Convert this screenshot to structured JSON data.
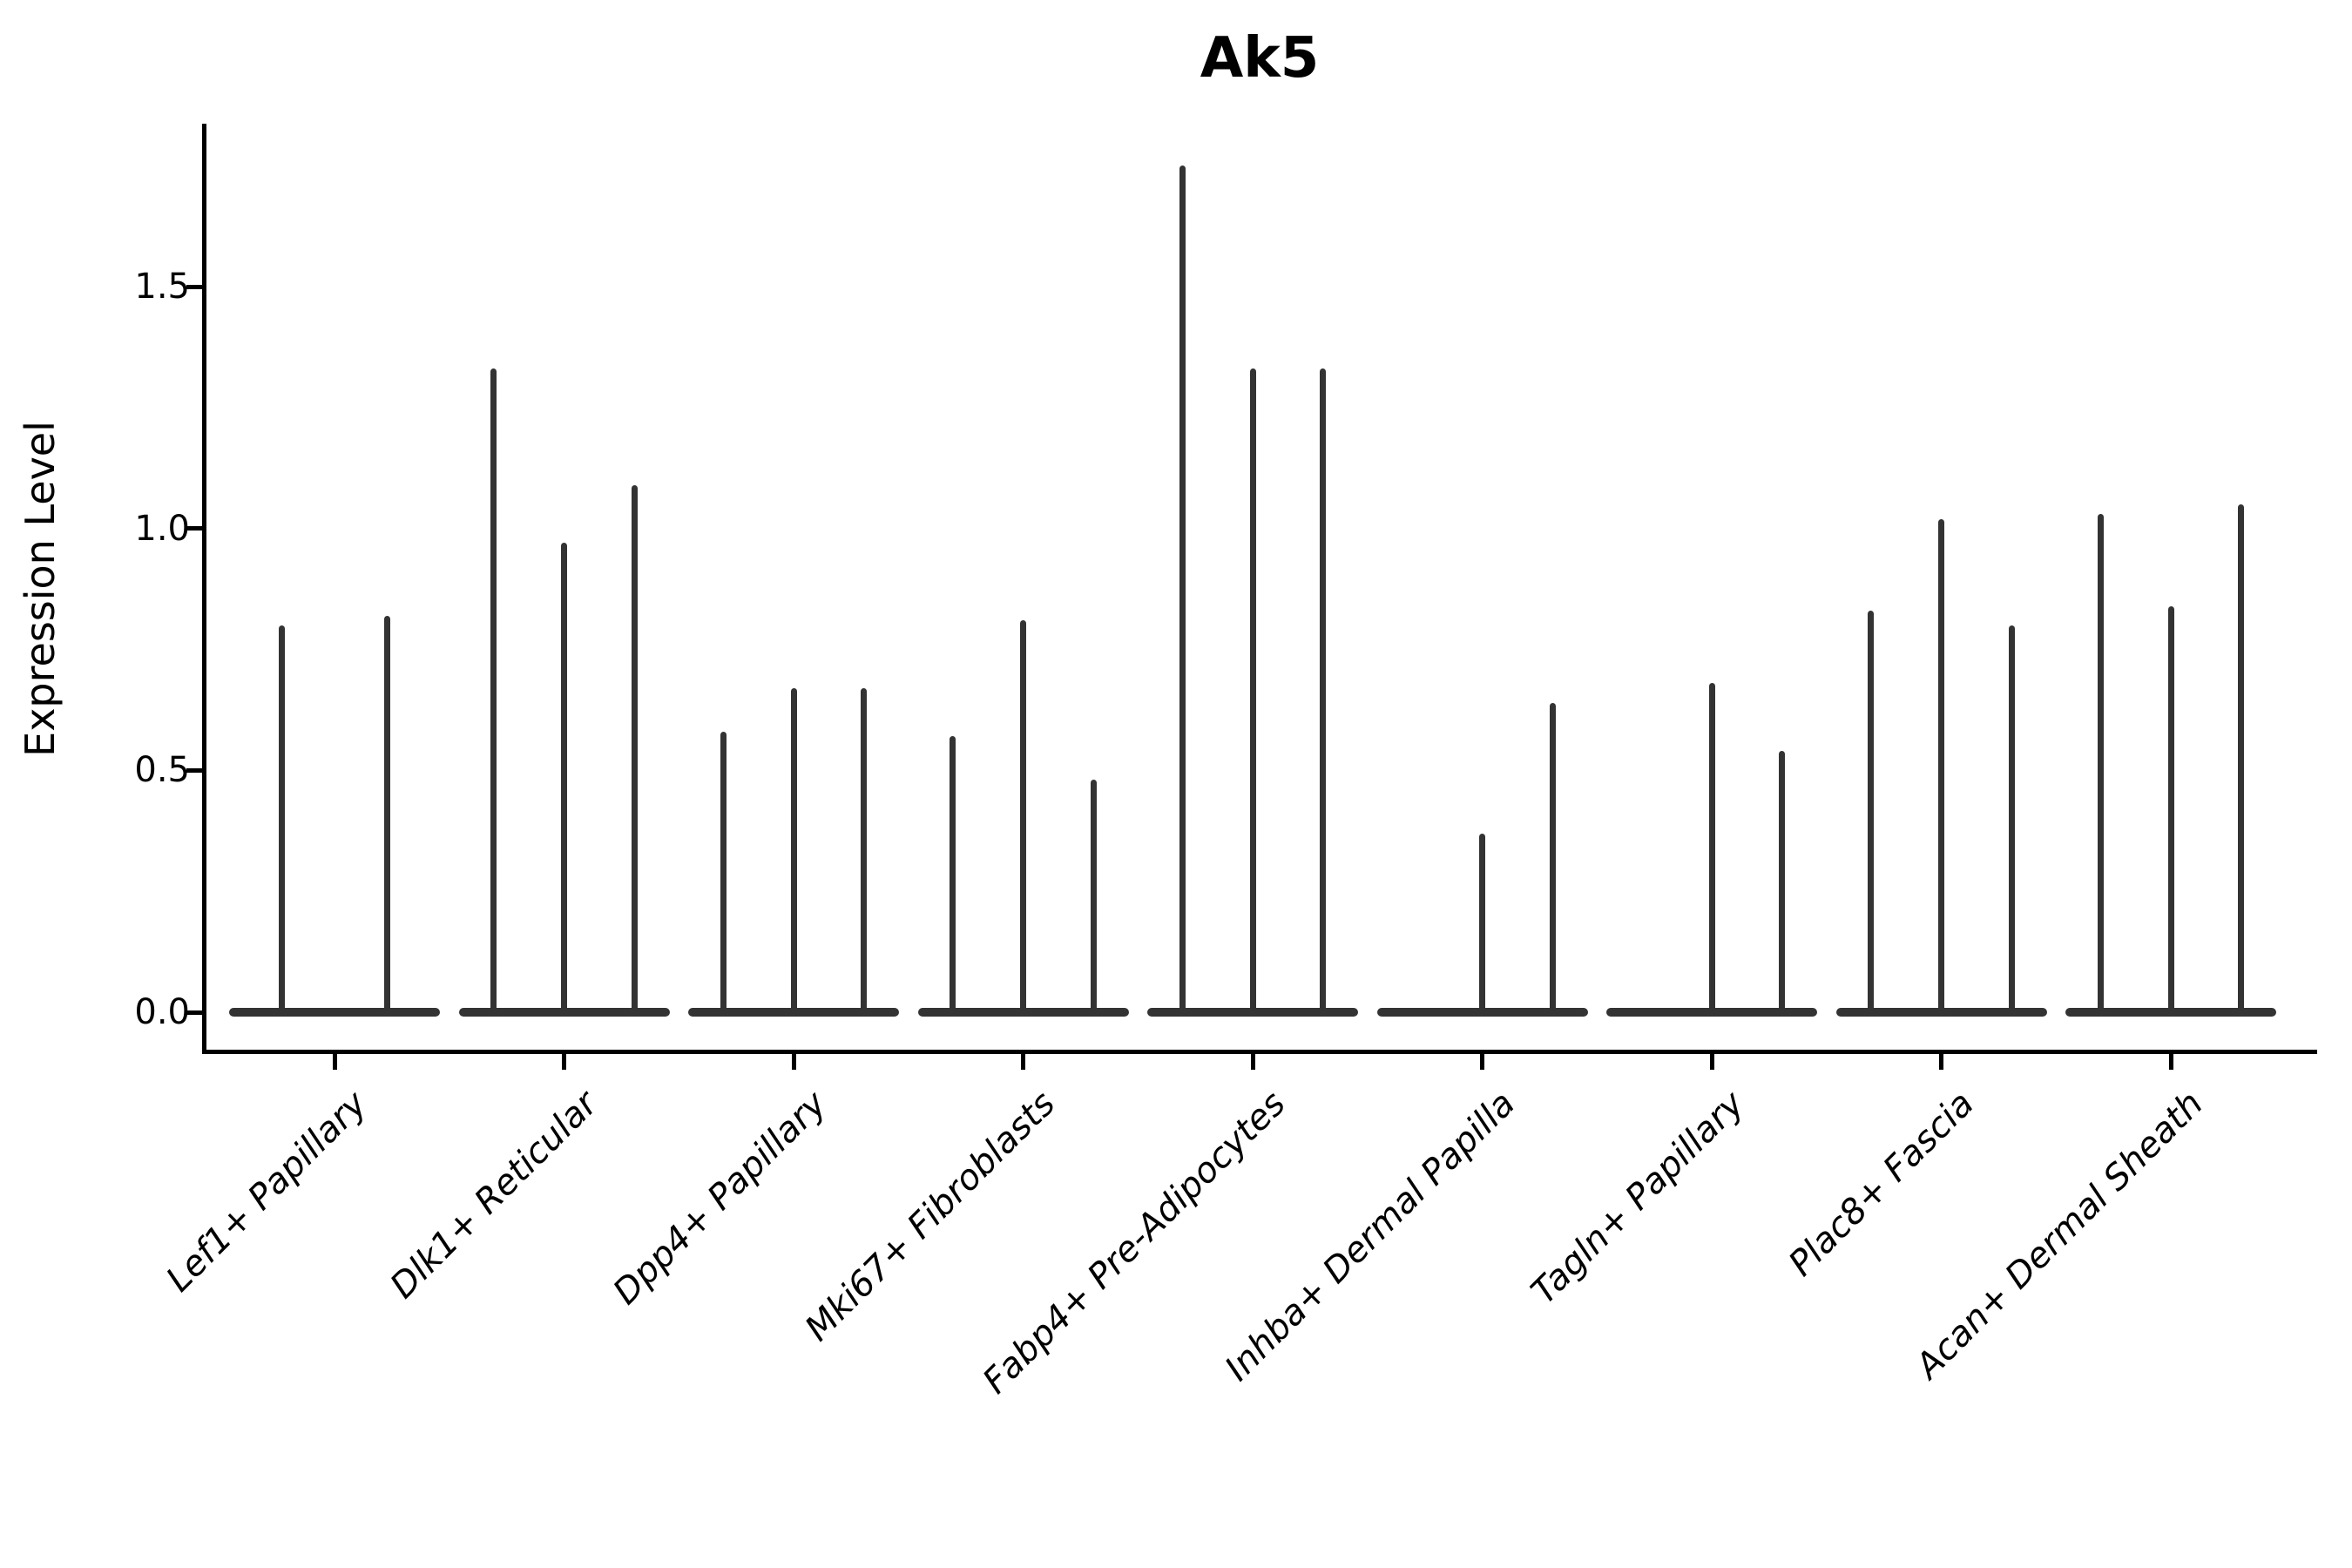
{
  "chart_data": {
    "type": "violin",
    "title": "Ak5",
    "ylabel": "Expression Level",
    "xlabel": "",
    "grid": false,
    "legend": "none",
    "y_ticks": [
      "0.0",
      "0.5",
      "1.0",
      "1.5"
    ],
    "y_tick_values": [
      0.0,
      0.5,
      1.0,
      1.5
    ],
    "ylim": [
      -0.09,
      1.84
    ],
    "categories": [
      "Lef1+ Papillary",
      "Dlk1+ Reticular",
      "Dpp4+ Papillary",
      "Mki67+ Fibroblasts",
      "Fabp4+ Pre-Adipocytes",
      "Inhba+ Dermal Papilla",
      "Tagln+ Papillary",
      "Plac8+ Fascia",
      "Acan+ Dermal Sheath"
    ],
    "description": "Thin violin plots per sample within each cell-type group; each violin is flat at 0 with a narrow spike up to its maximum expression value. A value of 0 means the violin is flat (no spike).",
    "violin_max_values": [
      [
        0.8,
        0.82
      ],
      [
        1.33,
        0.97,
        1.09
      ],
      [
        0.58,
        0.67,
        0.67
      ],
      [
        0.57,
        0.81,
        0.48
      ],
      [
        1.75,
        1.33,
        1.33
      ],
      [
        0.0,
        0.37,
        0.64
      ],
      [
        0.0,
        0.68,
        0.54
      ],
      [
        0.83,
        1.02,
        0.8
      ],
      [
        1.03,
        0.84,
        1.05
      ]
    ],
    "colors": {
      "violin": "#333333",
      "axis": "#000000",
      "text": "#000000",
      "background": "#ffffff"
    }
  }
}
